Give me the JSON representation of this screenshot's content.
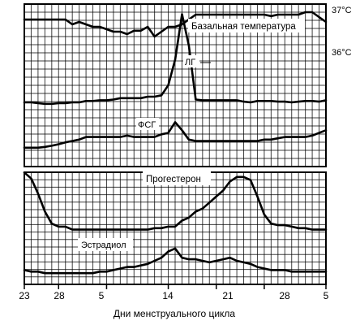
{
  "chart_data": [
    {
      "type": "line",
      "panel": "top",
      "x_unit": "day of menstrual cycle",
      "x_ticks": [
        "23",
        "28",
        "5",
        "14",
        "21",
        "28",
        "5"
      ],
      "grid": true,
      "series": [
        {
          "name": "Базальная температура",
          "scale_labels": [
            "37°C",
            "36°C"
          ],
          "x": [
            23,
            24,
            25,
            26,
            27,
            28,
            29,
            30,
            31,
            1,
            2,
            3,
            4,
            5,
            6,
            7,
            8,
            9,
            10,
            11,
            12,
            13,
            14,
            15,
            16,
            17,
            18,
            19,
            20,
            21,
            22,
            23,
            24,
            25,
            26,
            27,
            28,
            29,
            30,
            31,
            1,
            2,
            3,
            4,
            5
          ],
          "y": [
            36.95,
            36.95,
            36.95,
            36.95,
            36.95,
            36.95,
            36.95,
            36.85,
            36.9,
            36.85,
            36.8,
            36.8,
            36.75,
            36.7,
            36.7,
            36.65,
            36.72,
            36.72,
            36.8,
            36.6,
            36.7,
            36.8,
            36.8,
            36.85,
            36.95,
            37.05,
            37.05,
            37.05,
            37.05,
            37.05,
            37.05,
            37.05,
            37.05,
            37.05,
            37.05,
            37.05,
            37.02,
            37.05,
            37.05,
            37.05,
            37.05,
            37.1,
            37.1,
            37.0,
            36.9
          ]
        },
        {
          "name": "ЛГ",
          "x": [
            23,
            24,
            25,
            26,
            27,
            28,
            29,
            30,
            31,
            1,
            2,
            3,
            4,
            5,
            6,
            7,
            8,
            9,
            10,
            11,
            12,
            13,
            14,
            15,
            16,
            17,
            18,
            19,
            20,
            21,
            22,
            23,
            24,
            25,
            26,
            27,
            28,
            29,
            30,
            31,
            1,
            2,
            3,
            4,
            5
          ],
          "y": [
            8,
            8,
            7.5,
            7,
            7,
            7.5,
            7.5,
            8,
            8,
            9,
            9,
            9.5,
            9.5,
            10,
            11,
            11,
            11,
            11,
            12,
            12,
            13,
            20,
            38,
            70,
            48,
            10,
            9.5,
            9.5,
            9.5,
            9.5,
            9.5,
            9.5,
            8.5,
            8,
            9,
            9,
            9,
            8.5,
            8.5,
            8,
            8.5,
            9,
            9,
            8.5,
            9.5
          ]
        },
        {
          "name": "ФСГ",
          "x": [
            23,
            24,
            25,
            26,
            27,
            28,
            29,
            30,
            31,
            1,
            2,
            3,
            4,
            5,
            6,
            7,
            8,
            9,
            10,
            11,
            12,
            13,
            14,
            15,
            16,
            17,
            18,
            19,
            20,
            21,
            22,
            23,
            24,
            25,
            26,
            27,
            28,
            29,
            30,
            31,
            1,
            2,
            3,
            4,
            5
          ],
          "y": [
            2.5,
            2.5,
            2.5,
            2.8,
            3.2,
            3.8,
            4.5,
            5,
            5.5,
            6.5,
            6.5,
            6.5,
            6.5,
            6.5,
            6.5,
            7,
            6.5,
            6.5,
            6.5,
            6.5,
            7.5,
            8,
            12,
            9,
            5.5,
            5,
            5,
            5,
            5,
            5,
            5,
            5,
            5,
            5,
            5,
            5.5,
            5.5,
            6,
            6.5,
            6.5,
            6.5,
            6.5,
            7,
            8,
            9
          ]
        }
      ]
    },
    {
      "type": "line",
      "panel": "bottom",
      "x_unit": "day of menstrual cycle",
      "x_ticks": [
        "23",
        "28",
        "5",
        "14",
        "21",
        "28",
        "5"
      ],
      "x_label": "Дни менструального цикла",
      "grid": true,
      "series": [
        {
          "name": "Прогестерон",
          "x": [
            23,
            24,
            25,
            26,
            27,
            28,
            29,
            30,
            31,
            1,
            2,
            3,
            4,
            5,
            6,
            7,
            8,
            9,
            10,
            11,
            12,
            13,
            14,
            15,
            16,
            17,
            18,
            19,
            20,
            21,
            22,
            23,
            24,
            25,
            26,
            27,
            28,
            29,
            30,
            31,
            1,
            2,
            3,
            4,
            5
          ],
          "y": [
            21,
            19,
            14,
            8,
            4,
            3,
            3,
            2,
            2,
            2,
            2,
            2,
            2,
            2,
            2,
            2,
            2,
            2,
            2,
            2.5,
            2.5,
            3,
            3,
            5,
            6,
            8,
            9,
            11,
            13,
            15,
            18,
            19.5,
            19.5,
            18.5,
            13,
            7,
            4,
            3.5,
            3.5,
            3,
            2.5,
            2.5,
            2,
            2,
            2
          ]
        },
        {
          "name": "Эстрадиол",
          "x": [
            23,
            24,
            25,
            26,
            27,
            28,
            29,
            30,
            31,
            1,
            2,
            3,
            4,
            5,
            6,
            7,
            8,
            9,
            10,
            11,
            12,
            13,
            14,
            15,
            16,
            17,
            18,
            19,
            20,
            21,
            22,
            23,
            24,
            25,
            26,
            27,
            28,
            29,
            30,
            31,
            1,
            2,
            3,
            4,
            5
          ],
          "y": [
            2,
            1.5,
            1.5,
            1,
            1,
            1,
            1,
            1,
            1,
            1,
            1,
            1.5,
            1.5,
            2,
            2.5,
            3,
            3,
            3.5,
            4,
            5,
            6,
            8,
            9,
            6,
            5.5,
            5.5,
            5,
            4.5,
            5,
            5.5,
            6,
            5,
            4.5,
            4,
            3,
            2.5,
            2,
            2,
            2,
            1.5,
            1.5,
            1.5,
            1.5,
            1.5,
            1.5
          ]
        }
      ]
    }
  ]
}
